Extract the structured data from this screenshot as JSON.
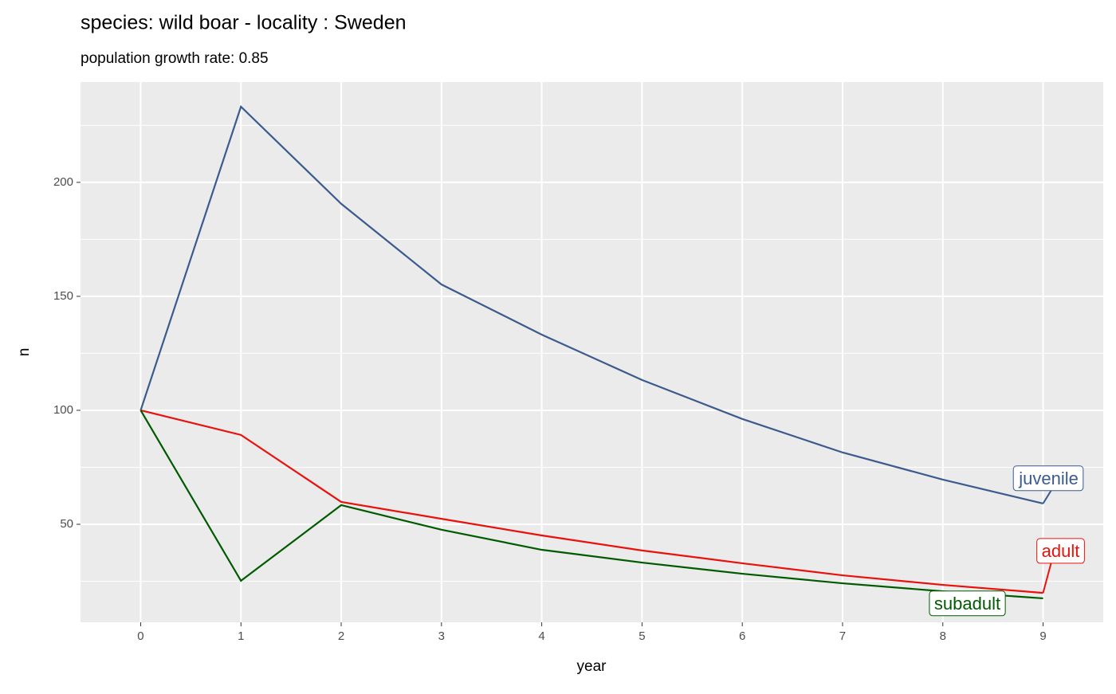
{
  "chart_data": {
    "type": "line",
    "title": "species: wild boar - locality : Sweden",
    "subtitle": "population growth rate: 0.85",
    "x_label": "year",
    "y_label": "n",
    "x": [
      0,
      1,
      2,
      3,
      4,
      5,
      6,
      7,
      8,
      9
    ],
    "series": [
      {
        "name": "juvenile",
        "color": "#3b5b8f",
        "values": [
          100,
          233.2,
          190.6,
          155.2,
          133.2,
          113.3,
          96.2,
          81.5,
          69.6,
          59.1
        ]
      },
      {
        "name": "adult",
        "color": "#e8120c",
        "values": [
          100,
          89.2,
          59.8,
          52.4,
          45.1,
          38.5,
          32.9,
          27.6,
          23.4,
          19.9
        ]
      },
      {
        "name": "subadult",
        "color": "#005a00",
        "values": [
          100,
          25.2,
          58.4,
          47.6,
          38.8,
          33.2,
          28.3,
          24.1,
          20.6,
          17.5
        ]
      }
    ],
    "xlim": [
      -0.6,
      9.6
    ],
    "ylim": [
      7,
      244
    ],
    "xticks": [
      0,
      1,
      2,
      3,
      4,
      5,
      6,
      7,
      8,
      9
    ],
    "yticks": [
      50,
      100,
      150,
      200
    ],
    "yminorticks": [
      25,
      75,
      125,
      175,
      225
    ],
    "grid": true
  }
}
